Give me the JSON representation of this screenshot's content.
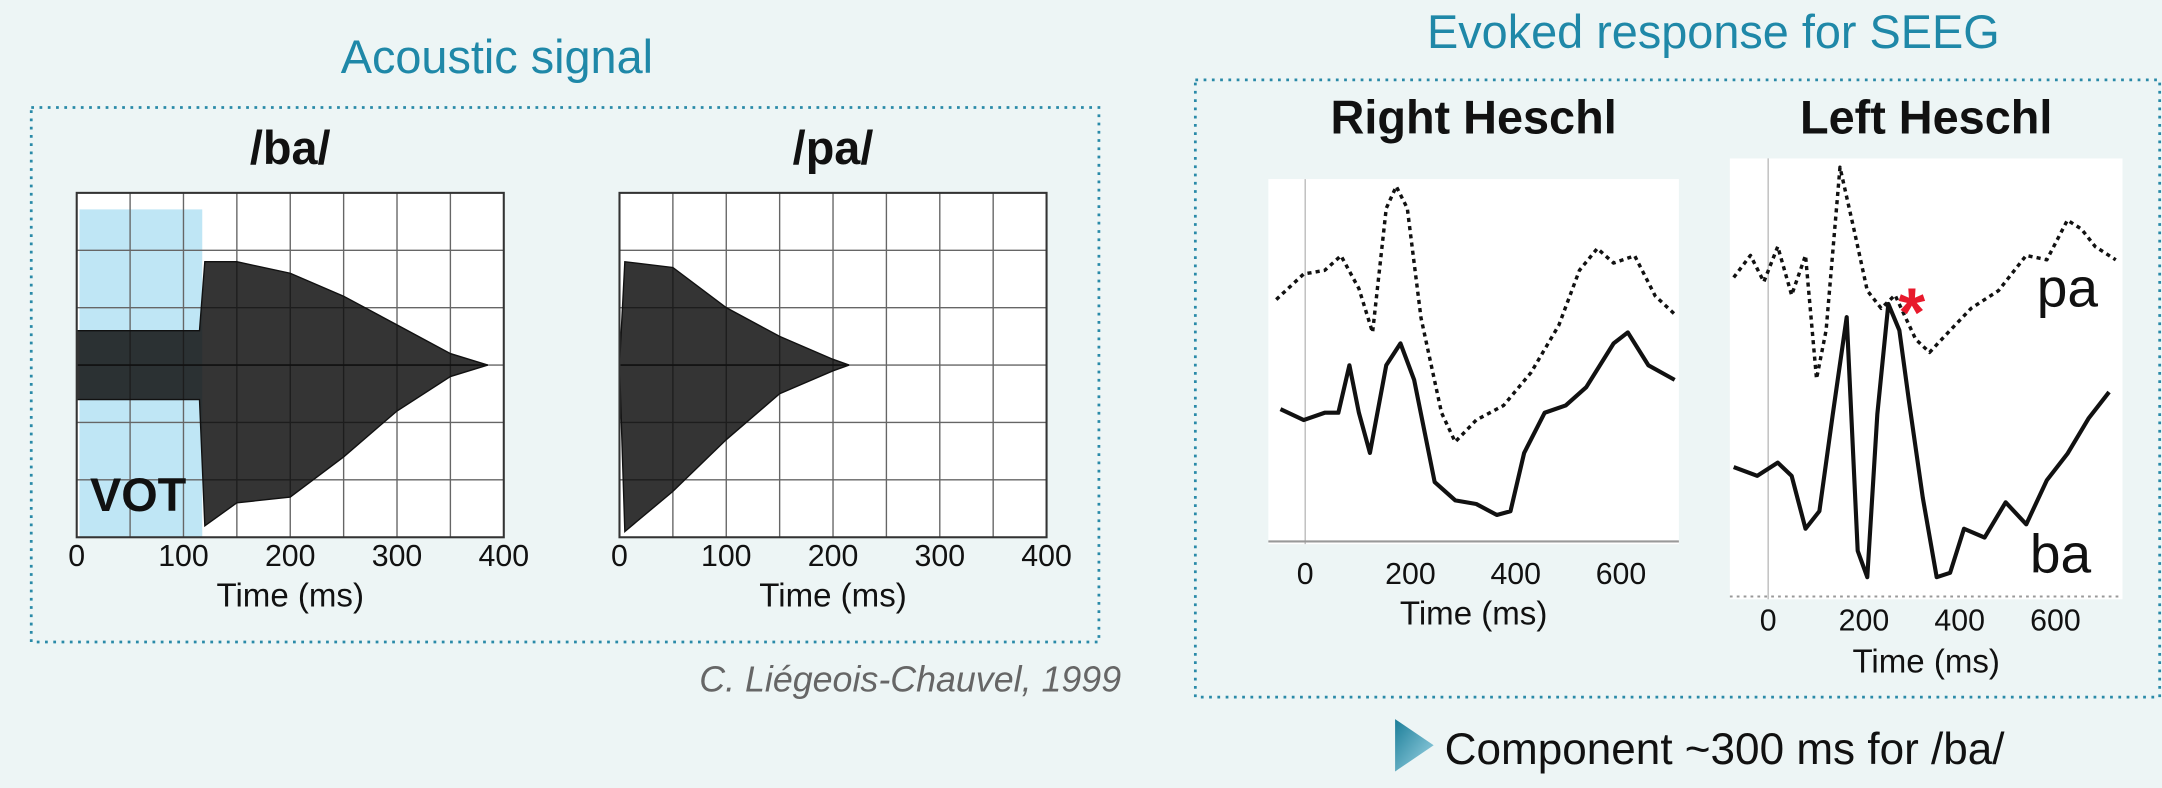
{
  "acoustic_title": "Acoustic signal",
  "seeg_title": "Evoked response for SEEG",
  "citation": "C. Liégeois-Chauvel, 1999",
  "note": "Component ~300 ms for /ba/",
  "chart_data": [
    {
      "type": "area",
      "title": "/ba/",
      "x_label": "Time (ms)",
      "color": "#111111",
      "xlim": [
        0,
        400
      ],
      "xticks": [
        0,
        100,
        200,
        300,
        400
      ],
      "xgrid": [
        0,
        50,
        100,
        150,
        200,
        250,
        300,
        350,
        400
      ],
      "ylim": [
        -3,
        3
      ],
      "ygrid": [
        -3,
        -2,
        -1,
        0,
        1,
        2,
        3
      ],
      "x": [
        0,
        115,
        120,
        150,
        200,
        250,
        300,
        350,
        385
      ],
      "series": [
        {
          "values": [
            0.6,
            0.6,
            1.8,
            1.8,
            1.6,
            1.2,
            0.7,
            0.2,
            0
          ]
        },
        {
          "values": [
            -0.6,
            -0.6,
            -2.8,
            -2.4,
            -2.3,
            -1.6,
            -0.8,
            -0.2,
            0
          ]
        }
      ],
      "annotation": {
        "text": "VOT",
        "x0": 0,
        "x1": 115,
        "color": "#bfe6f5"
      }
    },
    {
      "type": "area",
      "title": "/pa/",
      "x_label": "Time (ms)",
      "color": "#111111",
      "xlim": [
        0,
        400
      ],
      "xticks": [
        0,
        100,
        200,
        300,
        400
      ],
      "xgrid": [
        0,
        50,
        100,
        150,
        200,
        250,
        300,
        350,
        400
      ],
      "ylim": [
        -3,
        3
      ],
      "ygrid": [
        -3,
        -2,
        -1,
        0,
        1,
        2,
        3
      ],
      "x": [
        0,
        5,
        50,
        100,
        150,
        200,
        215
      ],
      "series": [
        {
          "values": [
            0,
            1.8,
            1.7,
            1.0,
            0.5,
            0.1,
            0
          ]
        },
        {
          "values": [
            0,
            -2.9,
            -2.2,
            -1.3,
            -0.5,
            -0.1,
            0
          ]
        }
      ]
    },
    {
      "type": "line",
      "title": "Right Heschl",
      "x_label": "Time (ms)",
      "xlim": [
        -70,
        710
      ],
      "xticks": [
        0,
        200,
        400,
        600
      ],
      "ylim": [
        0,
        100
      ],
      "series": [
        {
          "style": "dotted",
          "color": "#111111",
          "x": [
            -55,
            -3,
            37,
            68,
            102,
            128,
            154,
            173,
            194,
            220,
            259,
            285,
            325,
            377,
            429,
            482,
            521,
            555,
            586,
            626,
            665,
            702
          ],
          "values": [
            67,
            74,
            75,
            79,
            70,
            58,
            92,
            98,
            92,
            62,
            36,
            28,
            34,
            38,
            47,
            60,
            75,
            81,
            77,
            79,
            68,
            63
          ]
        },
        {
          "style": "solid",
          "color": "#111111",
          "x": [
            -47,
            -3,
            37,
            63,
            84,
            102,
            123,
            154,
            181,
            207,
            246,
            285,
            325,
            364,
            390,
            416,
            455,
            495,
            534,
            586,
            613,
            652,
            702
          ],
          "values": [
            37,
            34,
            36,
            36,
            49,
            36,
            25,
            49,
            55,
            45,
            17,
            12,
            11,
            8,
            9,
            25,
            36,
            38,
            43,
            55,
            58,
            49,
            45
          ]
        }
      ]
    },
    {
      "type": "line",
      "title": "Left Heschl",
      "x_label": "Time (ms)",
      "xlim": [
        -80,
        740
      ],
      "xticks": [
        0,
        200,
        400,
        600
      ],
      "ylim": [
        0,
        100
      ],
      "series": [
        {
          "name": "pa",
          "style": "dotted",
          "color": "#111111",
          "x": [
            -72,
            -37,
            -9,
            20,
            49,
            78,
            101,
            121,
            150,
            179,
            207,
            236,
            265,
            308,
            337,
            380,
            424,
            481,
            539,
            582,
            625,
            654,
            683,
            726
          ],
          "values": [
            73,
            78,
            72,
            80,
            69,
            78,
            50,
            61,
            98,
            84,
            70,
            66,
            69,
            59,
            56,
            61,
            66,
            70,
            78,
            77,
            86,
            84,
            80,
            77
          ]
        },
        {
          "name": "ba",
          "style": "solid",
          "color": "#111111",
          "x": [
            -72,
            -23,
            20,
            49,
            78,
            107,
            135,
            164,
            187,
            207,
            228,
            251,
            274,
            294,
            323,
            352,
            380,
            409,
            452,
            496,
            539,
            582,
            625,
            669,
            712
          ],
          "values": [
            30,
            28,
            31,
            28,
            16,
            20,
            42,
            64,
            11,
            5,
            42,
            67,
            61,
            45,
            23,
            5,
            6,
            16,
            14,
            22,
            17,
            27,
            33,
            41,
            47
          ]
        }
      ],
      "marker": {
        "text": "*",
        "x": 300,
        "y": 67,
        "color": "#e8192c"
      }
    }
  ]
}
